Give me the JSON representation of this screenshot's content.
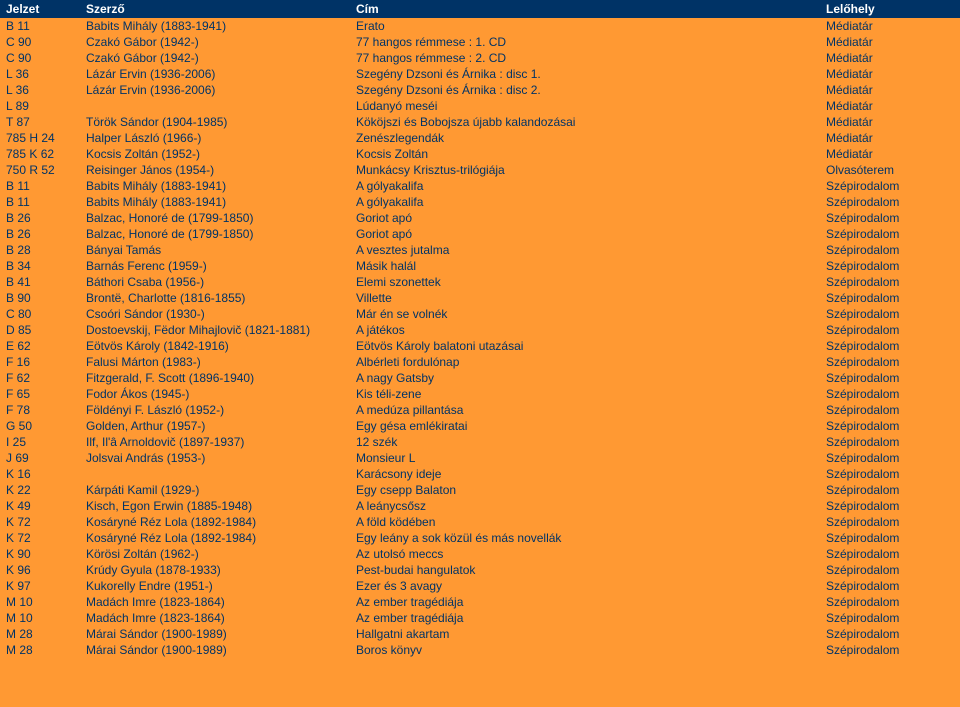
{
  "columns": [
    "Jelzet",
    "Szerző",
    "Cím",
    "Lelőhely"
  ],
  "rows": [
    [
      "B 11",
      "Babits Mihály (1883-1941)",
      "Erato",
      "Médiatár"
    ],
    [
      "C 90",
      "Czakó Gábor (1942-)",
      "77 hangos rémmese : 1. CD",
      "Médiatár"
    ],
    [
      "C 90",
      "Czakó Gábor (1942-)",
      "77 hangos rémmese : 2. CD",
      "Médiatár"
    ],
    [
      "L 36",
      "Lázár Ervin (1936-2006)",
      "Szegény Dzsoni és Árnika : disc 1.",
      "Médiatár"
    ],
    [
      "L 36",
      "Lázár Ervin (1936-2006)",
      "Szegény Dzsoni és Árnika : disc 2.",
      "Médiatár"
    ],
    [
      "L 89",
      "",
      "Lúdanyó meséi",
      "Médiatár"
    ],
    [
      "T 87",
      "Török Sándor (1904-1985)",
      "Kököjszi és Bobojsza újabb kalandozásai",
      "Médiatár"
    ],
    [
      "785 H 24",
      "Halper László (1966-)",
      "Zenészlegendák",
      "Médiatár"
    ],
    [
      "785 K 62",
      "Kocsis Zoltán (1952-)",
      "Kocsis Zoltán",
      "Médiatár"
    ],
    [
      "750 R 52",
      "Reisinger János (1954-)",
      "Munkácsy Krisztus-trilógiája",
      "Olvasóterem"
    ],
    [
      "B 11",
      "Babits Mihály (1883-1941)",
      "A gólyakalifa",
      "Szépirodalom"
    ],
    [
      "B 11",
      "Babits Mihály (1883-1941)",
      "A gólyakalifa",
      "Szépirodalom"
    ],
    [
      "B 26",
      "Balzac, Honoré de (1799-1850)",
      "Goriot apó",
      "Szépirodalom"
    ],
    [
      "B 26",
      "Balzac, Honoré de (1799-1850)",
      "Goriot apó",
      "Szépirodalom"
    ],
    [
      "B 28",
      "Bányai Tamás",
      "A vesztes jutalma",
      "Szépirodalom"
    ],
    [
      "B 34",
      "Barnás Ferenc (1959-)",
      "Másik halál",
      "Szépirodalom"
    ],
    [
      "B 41",
      "Báthori Csaba (1956-)",
      "Elemi szonettek",
      "Szépirodalom"
    ],
    [
      "B 90",
      "Brontë, Charlotte (1816-1855)",
      "Villette",
      "Szépirodalom"
    ],
    [
      "C 80",
      "Csoóri Sándor (1930-)",
      "Már én se volnék",
      "Szépirodalom"
    ],
    [
      "D 85",
      "Dostoevskij, Fëdor Mihajlovič (1821-1881)",
      "A játékos",
      "Szépirodalom"
    ],
    [
      "E 62",
      "Eötvös Károly (1842-1916)",
      "Eötvös Károly balatoni utazásai",
      "Szépirodalom"
    ],
    [
      "F 16",
      "Falusi Márton (1983-)",
      "Albérleti fordulónap",
      "Szépirodalom"
    ],
    [
      "F 62",
      "Fitzgerald, F. Scott (1896-1940)",
      "A nagy Gatsby",
      "Szépirodalom"
    ],
    [
      "F 65",
      "Fodor Ákos (1945-)",
      "Kis téli-zene",
      "Szépirodalom"
    ],
    [
      "F 78",
      "Földényi F. László (1952-)",
      "A medúza pillantása",
      "Szépirodalom"
    ],
    [
      "G 50",
      "Golden, Arthur (1957-)",
      "Egy gésa emlékiratai",
      "Szépirodalom"
    ],
    [
      "I 25",
      "Ilf, Il'â Arnoldovič (1897-1937)",
      "12 szék",
      "Szépirodalom"
    ],
    [
      "J 69",
      "Jolsvai András (1953-)",
      "Monsieur L",
      "Szépirodalom"
    ],
    [
      "K 16",
      "",
      "Karácsony ideje",
      "Szépirodalom"
    ],
    [
      "K 22",
      "Kárpáti Kamil (1929-)",
      "Egy csepp Balaton",
      "Szépirodalom"
    ],
    [
      "K 49",
      "Kisch, Egon Erwin (1885-1948)",
      "A leánycsősz",
      "Szépirodalom"
    ],
    [
      "K 72",
      "Kosáryné Réz Lola (1892-1984)",
      "A föld ködében",
      "Szépirodalom"
    ],
    [
      "K 72",
      "Kosáryné Réz Lola (1892-1984)",
      "Egy leány a sok közül és más novellák",
      "Szépirodalom"
    ],
    [
      "K 90",
      "Körösi Zoltán (1962-)",
      "Az utolsó meccs",
      "Szépirodalom"
    ],
    [
      "K 96",
      "Krúdy Gyula (1878-1933)",
      "Pest-budai hangulatok",
      "Szépirodalom"
    ],
    [
      "K 97",
      "Kukorelly Endre (1951-)",
      "Ezer és 3 avagy",
      "Szépirodalom"
    ],
    [
      "M 10",
      "Madách Imre (1823-1864)",
      "Az ember tragédiája",
      "Szépirodalom"
    ],
    [
      "M 10",
      "Madách Imre (1823-1864)",
      "Az ember tragédiája",
      "Szépirodalom"
    ],
    [
      "M 28",
      "Márai Sándor (1900-1989)",
      "Hallgatni akartam",
      "Szépirodalom"
    ],
    [
      "M 28",
      "Márai Sándor (1900-1989)",
      "Boros könyv",
      "Szépirodalom"
    ]
  ]
}
